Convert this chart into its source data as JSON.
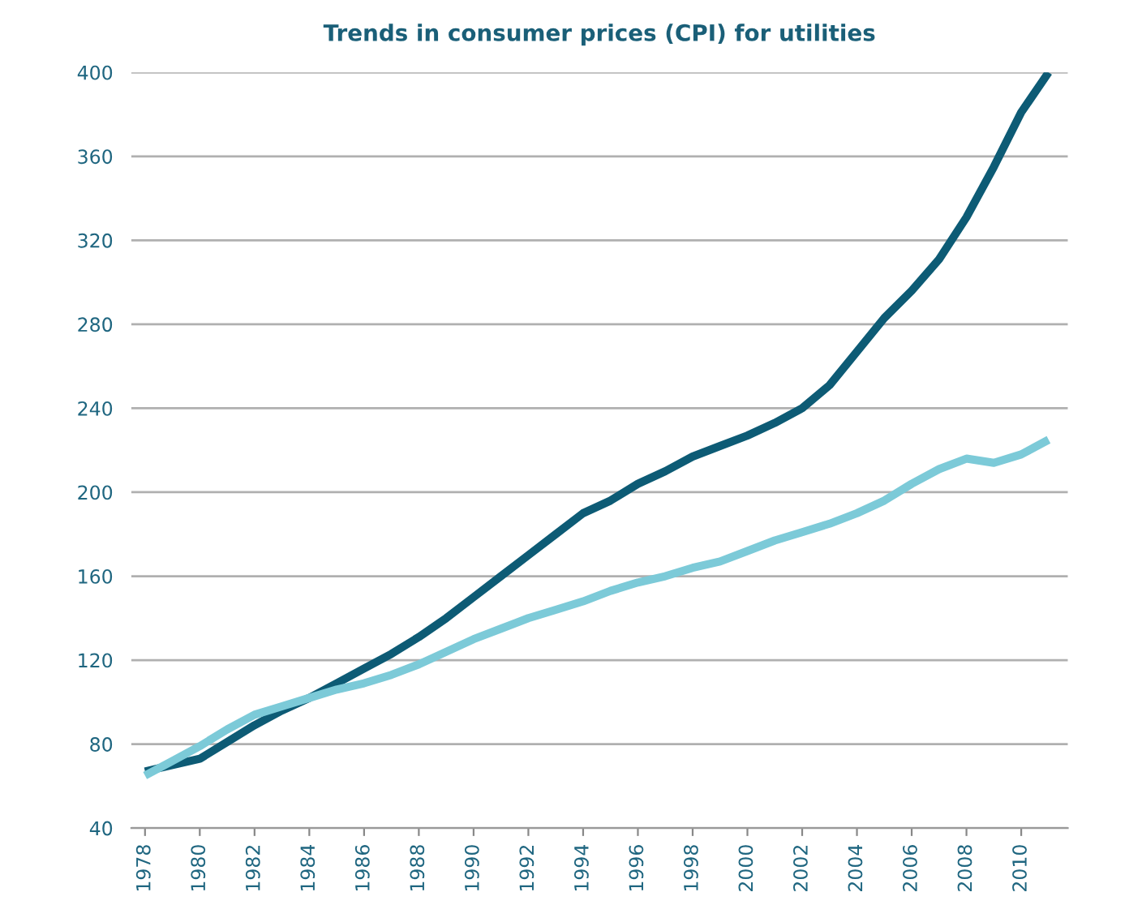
{
  "chart_data": {
    "type": "line",
    "title": "Trends in consumer prices (CPI) for utilities",
    "x": [
      1978,
      1979,
      1980,
      1981,
      1982,
      1983,
      1984,
      1985,
      1986,
      1987,
      1988,
      1989,
      1990,
      1991,
      1992,
      1993,
      1994,
      1995,
      1996,
      1997,
      1998,
      1999,
      2000,
      2001,
      2002,
      2003,
      2004,
      2005,
      2006,
      2007,
      2008,
      2009,
      2010,
      2011
    ],
    "series": [
      {
        "color": "#0d5b75",
        "values": [
          67,
          70,
          73,
          81,
          89,
          96,
          102,
          109,
          116,
          123,
          131,
          140,
          150,
          160,
          170,
          180,
          190,
          196,
          204,
          210,
          217,
          222,
          227,
          233,
          240,
          251,
          267,
          283,
          296,
          311,
          331,
          355,
          381,
          400
        ]
      },
      {
        "color": "#7ccad8",
        "values": [
          65,
          72,
          79,
          87,
          94,
          98,
          102,
          106,
          109,
          113,
          118,
          124,
          130,
          135,
          140,
          144,
          148,
          153,
          157,
          160,
          164,
          167,
          172,
          177,
          181,
          185,
          190,
          196,
          204,
          211,
          216,
          214,
          218,
          225
        ]
      }
    ],
    "xlim": [
      1977.5,
      2011.7
    ],
    "xticks": [
      1978,
      1980,
      1982,
      1984,
      1986,
      1988,
      1990,
      1992,
      1994,
      1996,
      1998,
      2000,
      2002,
      2004,
      2006,
      2008,
      2010
    ],
    "ylim": [
      40,
      400
    ],
    "yticks": [
      40,
      80,
      120,
      160,
      200,
      240,
      280,
      320,
      360,
      400
    ],
    "grid": "y",
    "marker": "none",
    "line_style": "solid"
  }
}
